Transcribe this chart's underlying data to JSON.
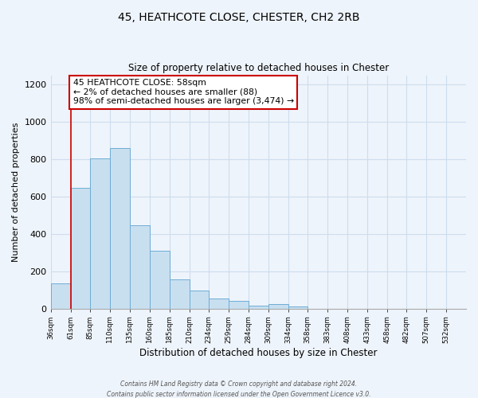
{
  "title": "45, HEATHCOTE CLOSE, CHESTER, CH2 2RB",
  "subtitle": "Size of property relative to detached houses in Chester",
  "xlabel": "Distribution of detached houses by size in Chester",
  "ylabel": "Number of detached properties",
  "bar_left_edges": [
    36,
    61,
    85,
    110,
    135,
    160,
    185,
    210,
    234,
    259,
    284,
    309,
    334,
    358,
    383,
    408,
    433,
    458,
    482,
    507
  ],
  "bar_heights": [
    135,
    645,
    805,
    860,
    445,
    308,
    158,
    97,
    52,
    42,
    17,
    22,
    9,
    0,
    0,
    0,
    0,
    0,
    0,
    0
  ],
  "bar_widths": [
    25,
    24,
    25,
    25,
    25,
    25,
    25,
    24,
    25,
    25,
    25,
    25,
    24,
    25,
    25,
    25,
    25,
    24,
    25,
    25
  ],
  "bar_color": "#c8dff0",
  "bar_edge_color": "#6eadd4",
  "tick_labels": [
    "36sqm",
    "61sqm",
    "85sqm",
    "110sqm",
    "135sqm",
    "160sqm",
    "185sqm",
    "210sqm",
    "234sqm",
    "259sqm",
    "284sqm",
    "309sqm",
    "334sqm",
    "358sqm",
    "383sqm",
    "408sqm",
    "433sqm",
    "458sqm",
    "482sqm",
    "507sqm",
    "532sqm"
  ],
  "tick_positions": [
    36,
    61,
    85,
    110,
    135,
    160,
    185,
    210,
    234,
    259,
    284,
    309,
    334,
    358,
    383,
    408,
    433,
    458,
    482,
    507,
    532
  ],
  "ylim": [
    0,
    1250
  ],
  "xlim": [
    36,
    557
  ],
  "property_line_x": 61,
  "property_line_color": "#cc0000",
  "annotation_line1": "45 HEATHCOTE CLOSE: 58sqm",
  "annotation_line2": "← 2% of detached houses are smaller (88)",
  "annotation_line3": "98% of semi-detached houses are larger (3,474) →",
  "annotation_box_edgecolor": "#cc0000",
  "annotation_box_facecolor": "#ffffff",
  "footer_line1": "Contains HM Land Registry data © Crown copyright and database right 2024.",
  "footer_line2": "Contains public sector information licensed under the Open Government Licence v3.0.",
  "yticks": [
    0,
    200,
    400,
    600,
    800,
    1000,
    1200
  ],
  "grid_color": "#ccdded",
  "background_color": "#eef4fb"
}
